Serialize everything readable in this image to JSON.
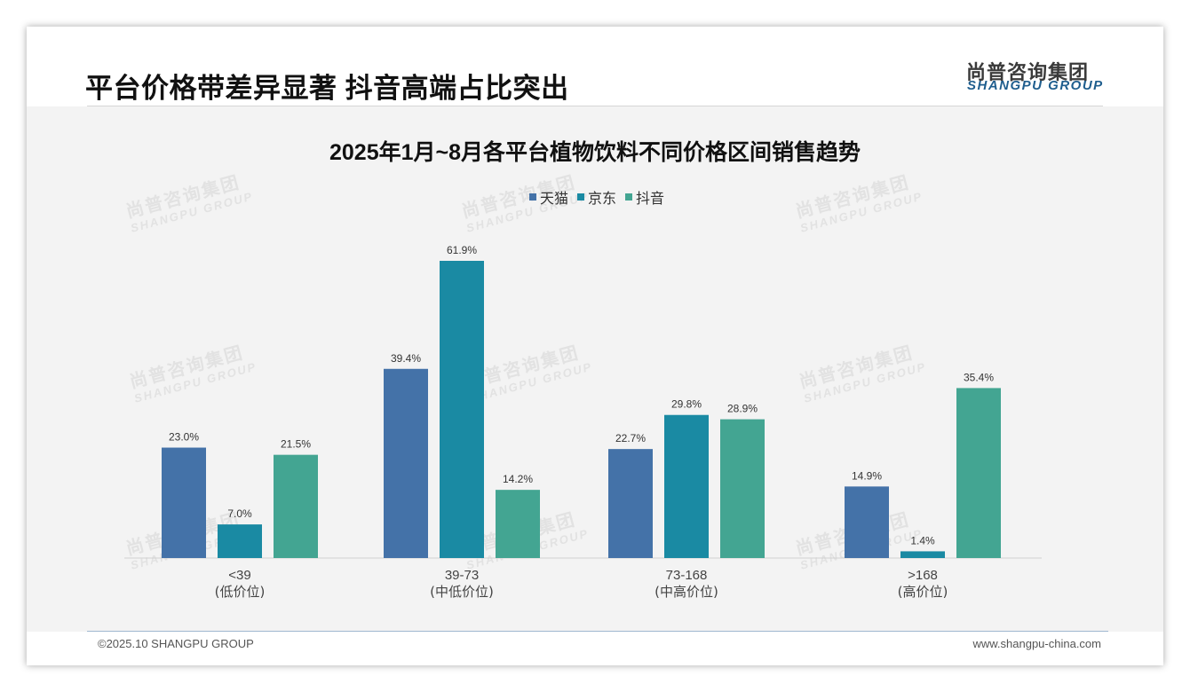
{
  "page_title": "平台价格带差异显著 抖音高端占比突出",
  "logo": {
    "cn": "尚普咨询集团",
    "en": "SHANGPU GROUP"
  },
  "watermark": {
    "cn": "尚普咨询集团",
    "en": "SHANGPU GROUP"
  },
  "footer": {
    "copyright": "©2025.10 SHANGPU GROUP",
    "website": "www.shangpu-china.com"
  },
  "colors": {
    "tmall": "#4472a8",
    "jd": "#1a8aa3",
    "douyin": "#43a592"
  },
  "chart_data": {
    "type": "bar",
    "title": "2025年1月~8月各平台植物饮料不同价格区间销售趋势",
    "categories": [
      {
        "range": "<39",
        "tier": "(低价位)"
      },
      {
        "range": "39-73",
        "tier": "(中低价位)"
      },
      {
        "range": "73-168",
        "tier": "(中高价位)"
      },
      {
        "range": ">168",
        "tier": "(高价位)"
      }
    ],
    "series": [
      {
        "name": "天猫",
        "color": "#4472a8",
        "values": [
          23.0,
          39.4,
          22.7,
          14.9
        ],
        "labels": [
          "23.0%",
          "39.4%",
          "22.7%",
          "14.9%"
        ]
      },
      {
        "name": "京东",
        "color": "#1a8aa3",
        "values": [
          7.0,
          61.9,
          29.8,
          1.4
        ],
        "labels": [
          "7.0%",
          "61.9%",
          "29.8%",
          "1.4%"
        ]
      },
      {
        "name": "抖音",
        "color": "#43a592",
        "values": [
          21.5,
          14.2,
          28.9,
          35.4
        ],
        "labels": [
          "21.5%",
          "14.2%",
          "28.9%",
          "35.4%"
        ]
      }
    ],
    "ylim": [
      0,
      65
    ],
    "grid": false,
    "legend_position": "top-center"
  }
}
